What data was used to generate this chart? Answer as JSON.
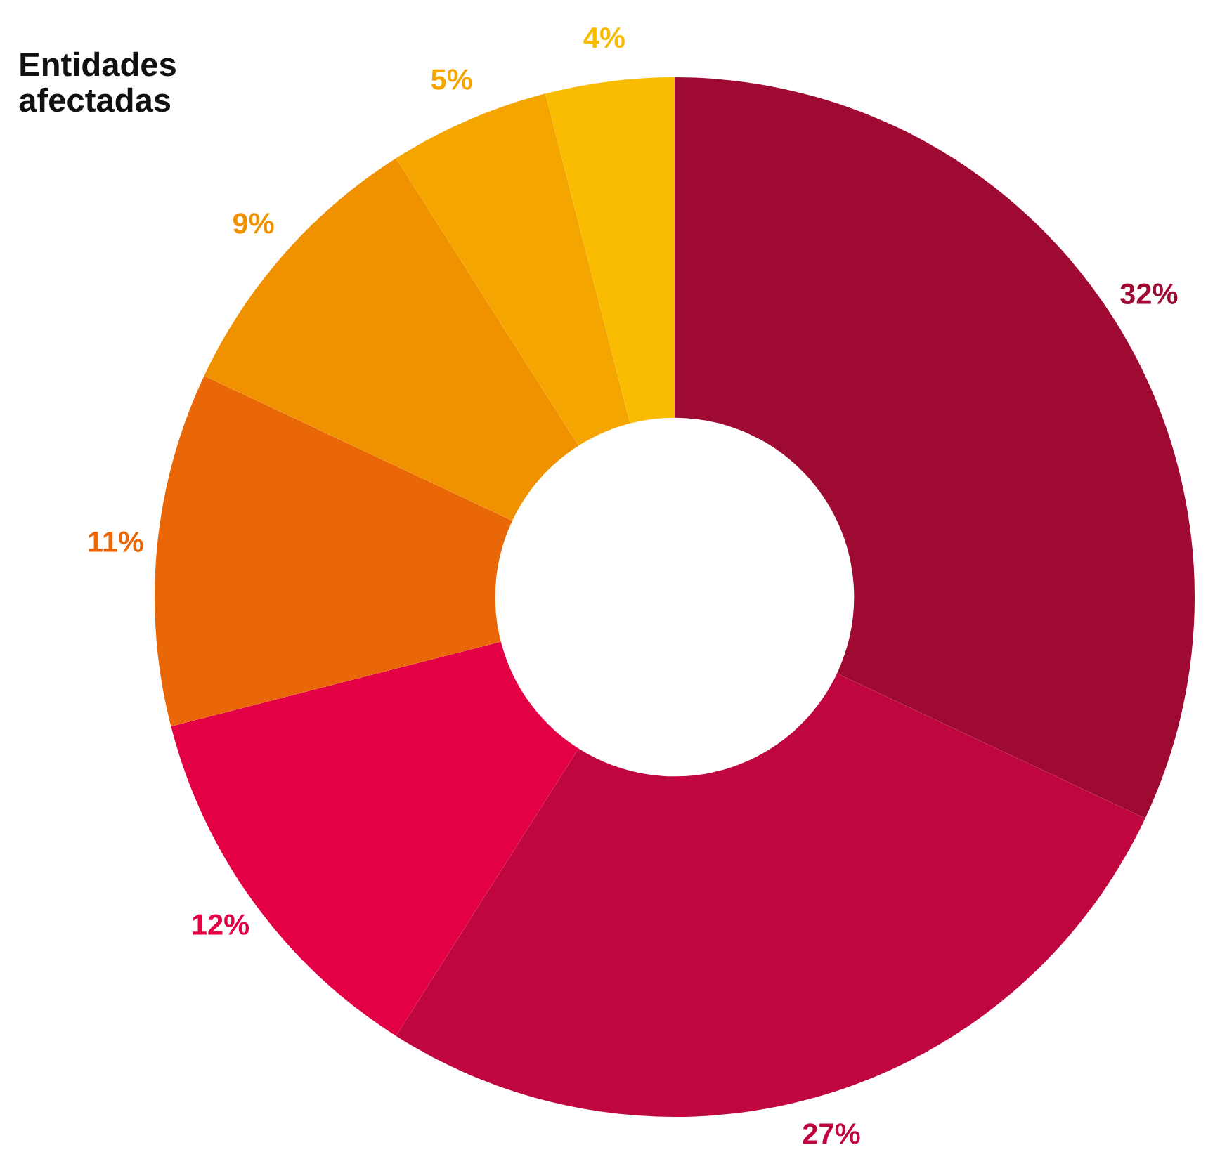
{
  "chart_data": {
    "type": "donut",
    "title": "Entidades\nafectadas",
    "categories": [
      null,
      null,
      null,
      null,
      null,
      null,
      null
    ],
    "values": [
      32,
      27,
      12,
      11,
      9,
      5,
      4
    ],
    "colors": [
      "#9e0a32",
      "#c0063e",
      "#e30045",
      "#ea6708",
      "#f09200",
      "#f5a500",
      "#f9bc00"
    ],
    "value_labels": [
      "32%",
      "27%",
      "12%",
      "11%",
      "9%",
      "5%",
      "4%"
    ]
  }
}
